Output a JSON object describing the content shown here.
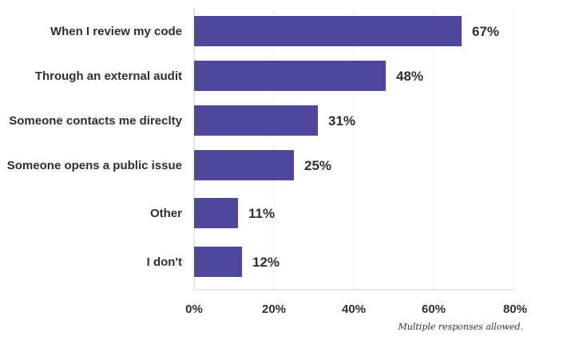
{
  "chart_data": {
    "type": "bar",
    "orientation": "horizontal",
    "categories": [
      "When I review my code",
      "Through an external audit",
      "Someone contacts me direclty",
      "Someone opens a public issue",
      "Other",
      "I don't"
    ],
    "values": [
      67,
      48,
      31,
      25,
      11,
      12
    ],
    "value_labels": [
      "67%",
      "48%",
      "31%",
      "25%",
      "11%",
      "12%"
    ],
    "xlim": [
      0,
      80
    ],
    "xticks": [
      "0%",
      "20%",
      "40%",
      "60%",
      "80%"
    ],
    "grid": true,
    "bar_color": "#4e479c",
    "title": "",
    "xlabel": "",
    "ylabel": "",
    "note": "Multiple responses allowed."
  }
}
